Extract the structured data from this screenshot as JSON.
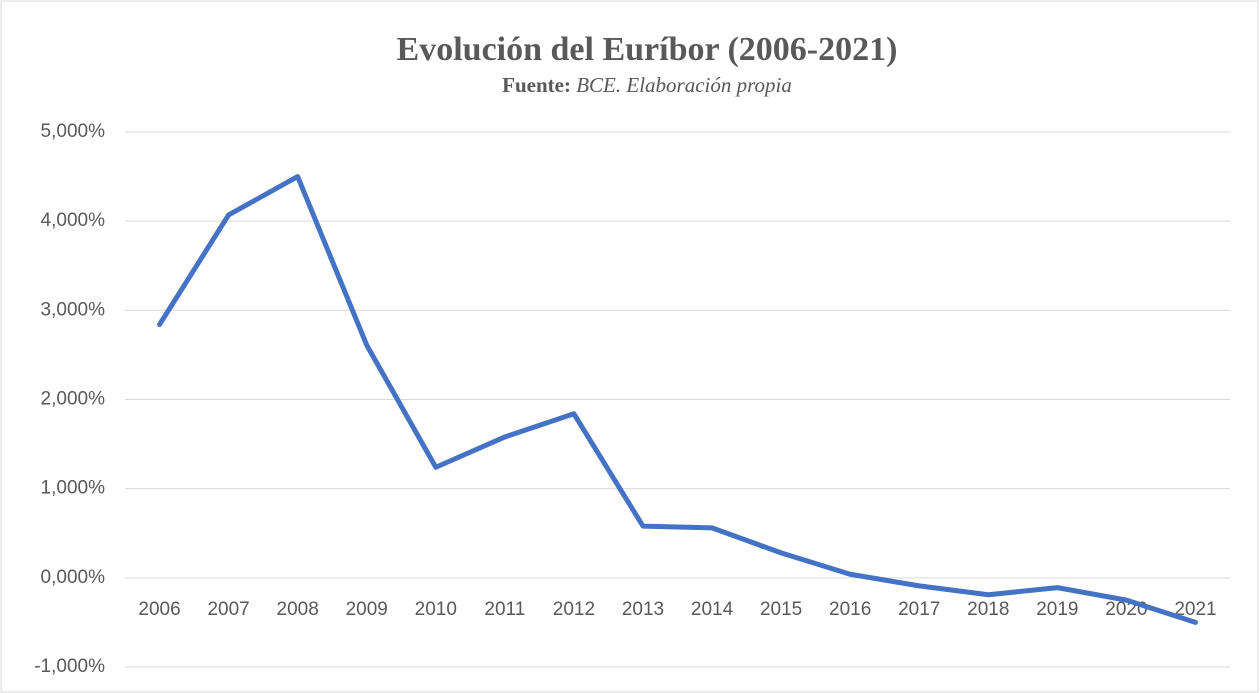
{
  "chart_data": {
    "type": "line",
    "title": "Evolución del Euríbor (2006-2021)",
    "subtitle": {
      "label": "Fuente:",
      "text": "BCE. Elaboración propia"
    },
    "categories": [
      "2006",
      "2007",
      "2008",
      "2009",
      "2010",
      "2011",
      "2012",
      "2013",
      "2014",
      "2015",
      "2016",
      "2017",
      "2018",
      "2019",
      "2020",
      "2021"
    ],
    "values": [
      2.84,
      4.07,
      4.5,
      2.61,
      1.24,
      1.58,
      1.84,
      0.58,
      0.56,
      0.28,
      0.04,
      -0.09,
      -0.19,
      -0.11,
      -0.25,
      -0.5
    ],
    "color": "#4472c4",
    "ylim": [
      -1,
      5
    ],
    "yticks": [
      {
        "value": -1,
        "label": "-1,000%"
      },
      {
        "value": 0,
        "label": "0,000%"
      },
      {
        "value": 1,
        "label": "1,000%"
      },
      {
        "value": 2,
        "label": "2,000%"
      },
      {
        "value": 3,
        "label": "3,000%"
      },
      {
        "value": 4,
        "label": "4,000%"
      },
      {
        "value": 5,
        "label": "5,000%"
      }
    ],
    "grid": true
  }
}
